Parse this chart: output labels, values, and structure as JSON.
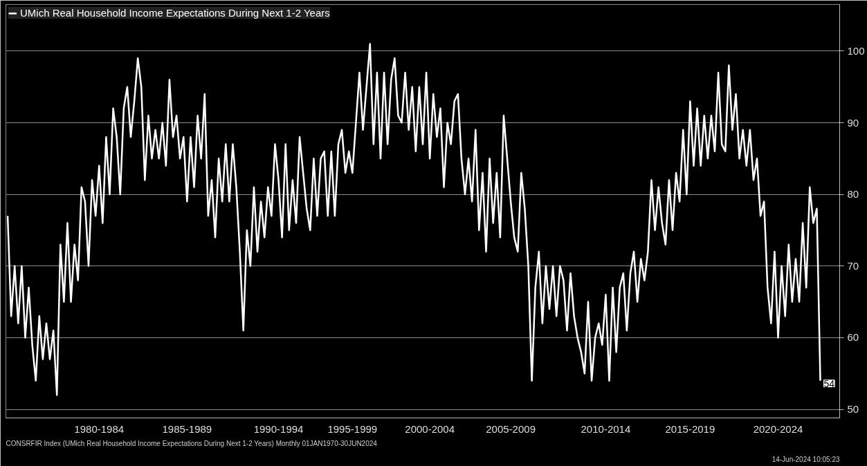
{
  "chart_data": {
    "type": "line",
    "categories": [
      null,
      null,
      null,
      null,
      null,
      null,
      null,
      null,
      null,
      null,
      null,
      null,
      null,
      null,
      null,
      null,
      null,
      null,
      null,
      null,
      null,
      null,
      null,
      null,
      null,
      null,
      "1980-1984",
      null,
      null,
      null,
      null,
      null,
      null,
      null,
      null,
      null,
      null,
      null,
      null,
      null,
      null,
      null,
      null,
      null,
      null,
      null,
      null,
      null,
      null,
      null,
      null,
      "1985-1989",
      null,
      null,
      null,
      null,
      null,
      null,
      null,
      null,
      null,
      null,
      null,
      null,
      null,
      null,
      null,
      null,
      null,
      null,
      null,
      null,
      null,
      null,
      null,
      null,
      null,
      "1990-1994",
      null,
      null,
      null,
      null,
      null,
      null,
      null,
      null,
      null,
      null,
      null,
      null,
      null,
      null,
      null,
      null,
      null,
      null,
      null,
      null,
      "1995-1999",
      null,
      null,
      null,
      null,
      null,
      null,
      null,
      null,
      null,
      null,
      null,
      null,
      null,
      null,
      null,
      null,
      null,
      null,
      null,
      null,
      null,
      "2000-2004",
      null,
      null,
      null,
      null,
      null,
      null,
      null,
      null,
      null,
      null,
      null,
      null,
      null,
      null,
      null,
      null,
      null,
      null,
      null,
      null,
      null,
      null,
      "2005-2009",
      null,
      null,
      null,
      null,
      null,
      null,
      null,
      null,
      null,
      null,
      null,
      null,
      null,
      null,
      null,
      null,
      null,
      null,
      null,
      null,
      null,
      null,
      null,
      null,
      null,
      null,
      "2010-2014",
      null,
      null,
      null,
      null,
      null,
      null,
      null,
      null,
      null,
      null,
      null,
      null,
      null,
      null,
      null,
      null,
      null,
      null,
      null,
      null,
      null,
      null,
      null,
      "2015-2019",
      null,
      null,
      null,
      null,
      null,
      null,
      null,
      null,
      null,
      null,
      null,
      null,
      null,
      null,
      null,
      null,
      null,
      null,
      null,
      null,
      null,
      null,
      null,
      null,
      "2020-2024",
      null,
      null,
      null,
      null,
      null,
      null,
      null,
      null,
      null,
      null,
      null,
      null
    ],
    "series": [
      {
        "name": "UMich Real Household Income Expectations During Next 1-2 Years",
        "color": "#ffffff",
        "values": [
          77,
          63,
          70,
          62,
          70,
          60,
          67,
          59,
          54,
          63,
          57,
          62,
          57,
          61,
          52,
          73,
          65,
          76,
          65,
          73,
          68,
          81,
          79,
          70,
          82,
          77,
          84,
          76,
          88,
          80,
          92,
          88,
          80,
          92,
          95,
          88,
          93,
          99,
          95,
          82,
          91,
          85,
          89,
          85,
          90,
          84,
          96,
          88,
          91,
          85,
          88,
          79,
          88,
          81,
          91,
          85,
          94,
          77,
          82,
          74,
          85,
          79,
          87,
          79,
          87,
          81,
          72,
          61,
          75,
          70,
          81,
          72,
          79,
          74,
          81,
          77,
          87,
          82,
          74,
          87,
          75,
          82,
          76,
          88,
          83,
          78,
          75,
          85,
          77,
          85,
          86,
          77,
          86,
          77,
          87,
          89,
          83,
          86,
          83,
          90,
          97,
          89,
          95,
          101,
          87,
          97,
          85,
          97,
          87,
          96,
          99,
          91,
          90,
          97,
          89,
          95,
          86,
          95,
          87,
          97,
          85,
          94,
          88,
          92,
          81,
          90,
          87,
          93,
          94,
          85,
          80,
          85,
          79,
          89,
          75,
          83,
          72,
          85,
          76,
          83,
          74,
          91,
          85,
          79,
          74,
          72,
          83,
          78,
          70,
          54,
          67,
          72,
          62,
          70,
          64,
          70,
          63,
          70,
          68,
          61,
          69,
          63,
          60,
          58,
          55,
          65,
          54,
          60,
          62,
          59,
          66,
          54,
          67,
          58,
          67,
          69,
          61,
          69,
          72,
          65,
          71,
          68,
          72,
          82,
          75,
          81,
          76,
          73,
          82,
          75,
          83,
          79,
          89,
          80,
          93,
          84,
          92,
          84,
          91,
          85,
          91,
          86,
          97,
          87,
          86,
          98,
          89,
          94,
          85,
          89,
          84,
          89,
          82,
          85,
          77,
          79,
          67,
          62,
          72,
          60,
          70,
          63,
          73,
          65,
          71,
          65,
          76,
          67,
          81,
          76,
          78,
          54
        ],
        "value_labels": [
          null,
          null,
          null,
          null,
          null,
          null,
          null,
          null,
          null,
          null,
          null,
          null,
          null,
          null,
          null,
          null,
          null,
          null,
          null,
          null,
          null,
          null,
          null,
          null,
          null,
          null,
          null,
          null,
          null,
          null,
          null,
          null,
          null,
          null,
          null,
          null,
          null,
          null,
          null,
          null,
          null,
          null,
          null,
          null,
          null,
          null,
          null,
          null,
          null,
          null,
          null,
          null,
          null,
          null,
          null,
          null,
          null,
          null,
          null,
          null,
          null,
          null,
          null,
          null,
          null,
          null,
          null,
          null,
          null,
          null,
          null,
          null,
          null,
          null,
          null,
          null,
          null,
          null,
          null,
          null,
          null,
          null,
          null,
          null,
          null,
          null,
          null,
          null,
          null,
          null,
          null,
          null,
          null,
          null,
          null,
          null,
          null,
          null,
          null,
          null,
          null,
          null,
          null,
          null,
          null,
          null,
          null,
          null,
          null,
          null,
          null,
          null,
          null,
          null,
          null,
          null,
          null,
          null,
          null,
          null,
          null,
          null,
          null,
          null,
          null,
          null,
          null,
          null,
          null,
          null,
          null,
          null,
          null,
          null,
          null,
          null,
          null,
          null,
          null,
          null,
          null,
          null,
          null,
          null,
          null,
          null,
          null,
          null,
          null,
          null,
          null,
          null,
          null,
          null,
          null,
          null,
          null,
          null,
          null,
          null,
          null,
          null,
          null,
          null,
          null,
          null,
          null,
          null,
          null,
          null,
          null,
          null,
          null,
          null,
          null,
          null,
          null,
          null,
          null,
          null,
          null,
          null,
          null,
          null,
          null,
          null,
          null,
          null,
          null,
          null,
          null,
          null,
          null,
          null,
          null,
          null,
          null,
          null,
          null,
          null,
          null,
          null,
          null,
          null,
          null,
          null,
          null,
          null,
          null,
          null,
          null,
          null,
          null,
          null,
          null,
          null,
          null,
          null,
          null,
          null,
          null,
          null,
          null,
          null,
          null,
          null,
          null,
          null,
          null,
          null,
          null,
          "54"
        ]
      }
    ],
    "ylim": [
      48.8,
      106.5
    ],
    "yticks": [
      50,
      60,
      70,
      80,
      90,
      100
    ],
    "grid": "y",
    "legend": "top left",
    "line_style": "solid",
    "annotations": [
      "CONSRFIR Index (UMich Real Household Income Expectations During Next 1-2 Years)  Monthly 01JAN1970-30JUN2024",
      "14-Jun-2024 10:05:23"
    ]
  }
}
